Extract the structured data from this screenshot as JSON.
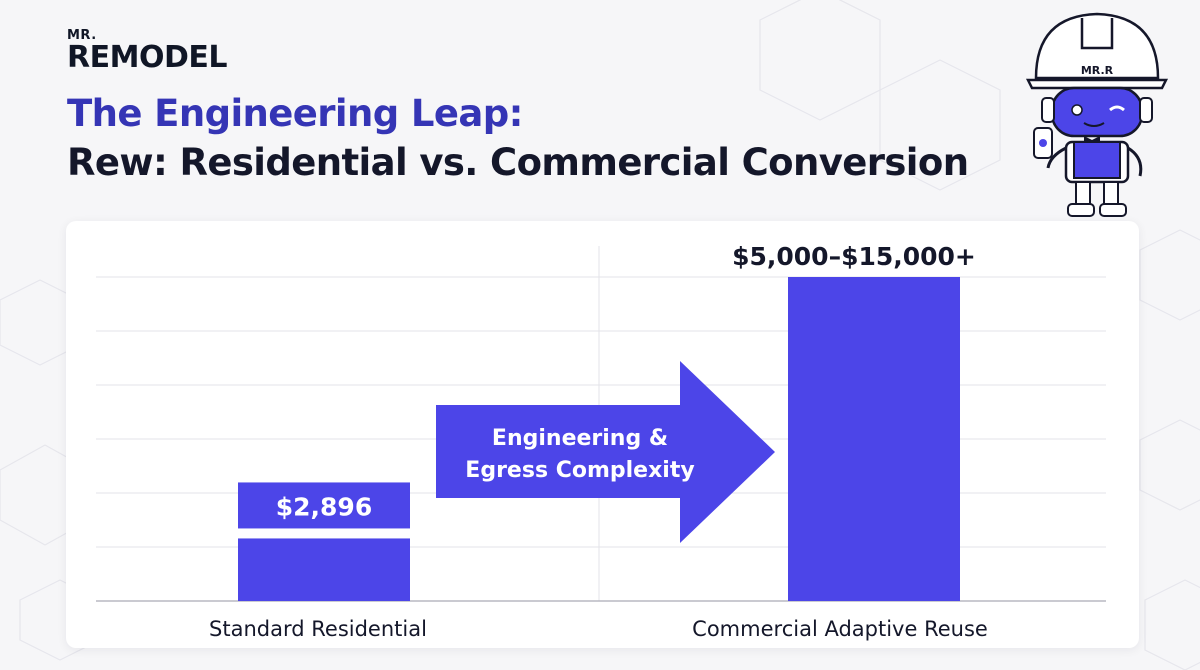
{
  "brand": {
    "prefix": "MR.",
    "name": "REMODEL"
  },
  "title": {
    "line1": "The Engineering Leap:",
    "line2": "Rew: Residential vs. Commercial Conversion"
  },
  "mascot": {
    "badge": "MR.R",
    "icon": "robot-mascot-icon"
  },
  "colors": {
    "bar": "#4c45e8",
    "title_accent": "#3535b5",
    "text": "#14172a",
    "grid": "#e3e3e8"
  },
  "chart_data": {
    "type": "bar",
    "categories": [
      "Standard Residential",
      "Commercial Adaptive Reuse"
    ],
    "values": [
      2896,
      15000
    ],
    "data_labels": [
      "$2,896",
      "$5,000–$15,000+"
    ],
    "ylim": [
      0,
      15000
    ],
    "grid": true,
    "annotation": {
      "line1": "Engineering &",
      "line2": "Egress Complexity",
      "shape": "arrow-right"
    }
  }
}
